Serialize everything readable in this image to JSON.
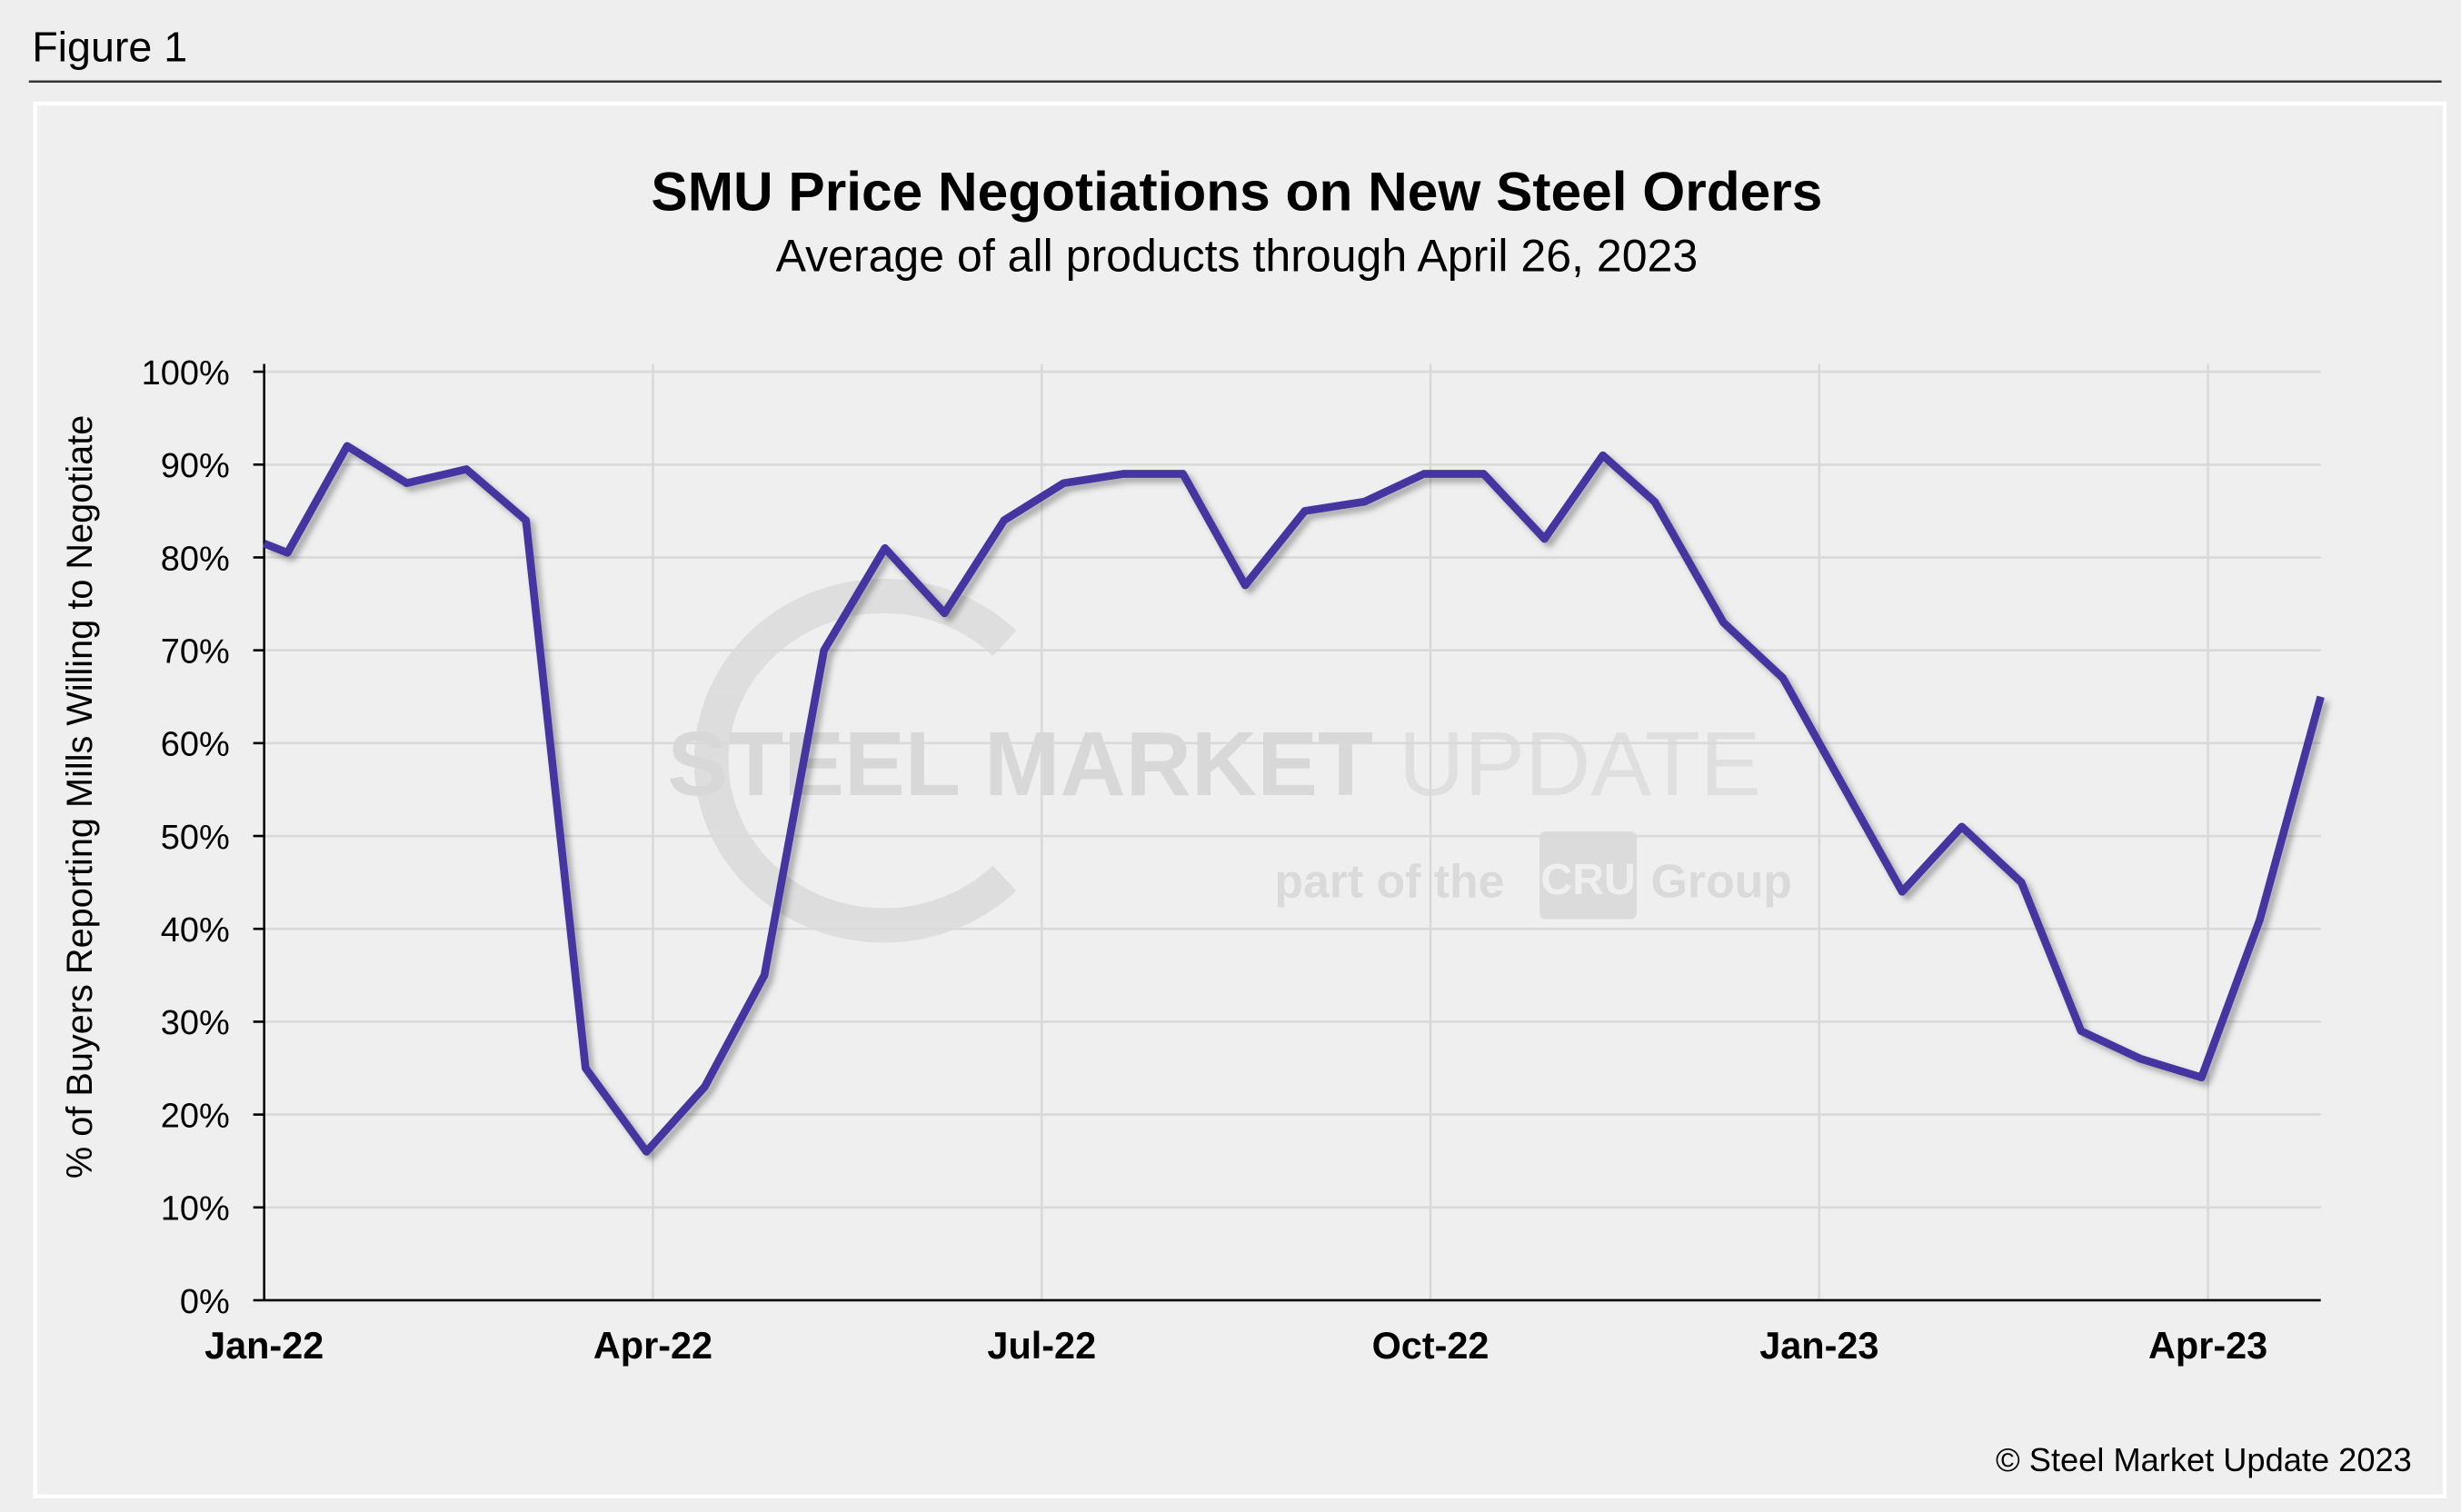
{
  "figure_label": "Figure 1",
  "copyright": "© Steel Market Update 2023",
  "watermark": {
    "line1_bold": "STEEL MARKET",
    "line1_light": "UPDATE",
    "line2_a": "part of the",
    "line2_logo": "CRU",
    "line2_b": "Group"
  },
  "colors": {
    "line": "#4535a0",
    "grid": "#d9d9d9",
    "background": "#efefef"
  },
  "chart_data": {
    "type": "line",
    "title": "SMU Price Negotiations on New Steel Orders",
    "subtitle": "Average of all products through April 26, 2023",
    "xlabel": "",
    "ylabel": "% of Buyers Reporting Mills Willing to Negotiate",
    "x_unit": "months since Jan-22",
    "xlim": [
      0,
      15.87
    ],
    "ylim": [
      0,
      100
    ],
    "grid": true,
    "y_ticks": [
      "0%",
      "10%",
      "20%",
      "30%",
      "40%",
      "50%",
      "60%",
      "70%",
      "80%",
      "90%",
      "100%"
    ],
    "x_ticks": [
      {
        "label": "Jan-22",
        "x": 0
      },
      {
        "label": "Apr-22",
        "x": 3
      },
      {
        "label": "Jul-22",
        "x": 6
      },
      {
        "label": "Oct-22",
        "x": 9
      },
      {
        "label": "Jan-23",
        "x": 12
      },
      {
        "label": "Apr-23",
        "x": 15
      }
    ],
    "series": [
      {
        "name": "Mills willing to negotiate",
        "x": [
          0,
          0.18,
          0.64,
          1.1,
          1.56,
          2.02,
          2.48,
          2.95,
          3.4,
          3.86,
          4.32,
          4.79,
          5.25,
          5.71,
          6.17,
          6.63,
          7.09,
          7.57,
          8.03,
          8.49,
          8.95,
          9.41,
          9.88,
          10.33,
          10.73,
          11.26,
          11.72,
          12.16,
          12.64,
          13.1,
          13.56,
          14.02,
          14.48,
          14.95,
          15.4,
          15.87
        ],
        "values": [
          81.5,
          80.5,
          92,
          88,
          89.5,
          84,
          25,
          16,
          23,
          35,
          70,
          81,
          74,
          84,
          88,
          89,
          89,
          77,
          85,
          86,
          89,
          89,
          82,
          91,
          86,
          73,
          67,
          56,
          44,
          51,
          45,
          29,
          26,
          24,
          41,
          65
        ]
      }
    ]
  }
}
